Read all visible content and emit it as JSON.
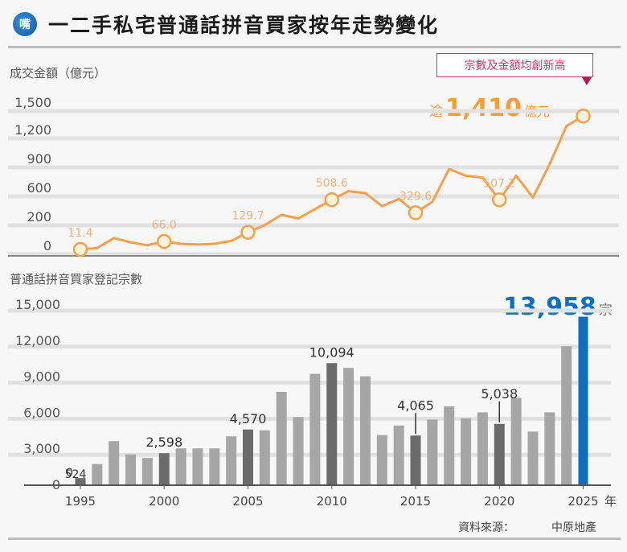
{
  "header": {
    "icon": "speech-bubble-icon",
    "icon_glyph": "嘴",
    "title": "一二手私宅普通話拼音買家按年走勢變化"
  },
  "line_chart": {
    "axis_title": "成交金額（億元）",
    "callout": "宗數及金額均創新高",
    "peak_prefix": "逾",
    "peak_value": "1,410",
    "peak_unit": "億元"
  },
  "bar_chart": {
    "axis_title": "普通話拼音買家登記宗數",
    "peak_value": "13,958",
    "peak_unit": "宗",
    "x_unit": "年"
  },
  "footer": {
    "source_label": "資料來源：",
    "source": "中原地產"
  },
  "colors": {
    "line": "#f5a04a",
    "line_marker_fill": "#fff3dc",
    "bar_normal": "#a6a6a6",
    "bar_highlight": "#6b6b6b",
    "bar_peak": "#0c6fc0",
    "callout": "#d6336c",
    "grid": "#e1e1e1"
  },
  "chart_data": [
    {
      "type": "line",
      "title": "成交金額（億元）",
      "ylabel": "成交金額（億元）",
      "ylim": [
        0,
        1500
      ],
      "yticks": [
        0,
        200,
        600,
        900,
        1200,
        1500
      ],
      "x": [
        1995,
        1996,
        1997,
        1998,
        1999,
        2000,
        2001,
        2002,
        2003,
        2004,
        2005,
        2006,
        2007,
        2008,
        2009,
        2010,
        2011,
        2012,
        2013,
        2014,
        2015,
        2016,
        2017,
        2018,
        2019,
        2020,
        2021,
        2022,
        2023,
        2024,
        2025
      ],
      "values": [
        11.4,
        20,
        90,
        60,
        40,
        66.0,
        50,
        45,
        50,
        70,
        129.7,
        180,
        300,
        250,
        380,
        508.6,
        620,
        600,
        420,
        520,
        329.6,
        480,
        850,
        780,
        760,
        507.2,
        780,
        540,
        900,
        1300,
        1410
      ],
      "labeled_points": [
        {
          "x": 1995,
          "label": "11.4"
        },
        {
          "x": 2000,
          "label": "66.0"
        },
        {
          "x": 2005,
          "label": "129.7"
        },
        {
          "x": 2010,
          "label": "508.6"
        },
        {
          "x": 2015,
          "label": "329.6"
        },
        {
          "x": 2020,
          "label": "507.2"
        },
        {
          "x": 2025,
          "label": "逾1,410億元"
        }
      ],
      "annotation": "宗數及金額均創新高"
    },
    {
      "type": "bar",
      "title": "普通話拼音買家登記宗數",
      "ylabel": "普通話拼音買家登記宗數",
      "xlabel": "年",
      "ylim": [
        0,
        15000
      ],
      "yticks": [
        0,
        3000,
        6000,
        9000,
        12000,
        15000
      ],
      "xticks": [
        1995,
        2000,
        2005,
        2010,
        2015,
        2020,
        2025
      ],
      "categories": [
        1995,
        1996,
        1997,
        1998,
        1999,
        2000,
        2001,
        2002,
        2003,
        2004,
        2005,
        2006,
        2007,
        2008,
        2009,
        2010,
        2011,
        2012,
        2013,
        2014,
        2015,
        2016,
        2017,
        2018,
        2019,
        2020,
        2021,
        2022,
        2023,
        2024,
        2025
      ],
      "values": [
        524,
        1700,
        3600,
        2500,
        2200,
        2598,
        3000,
        3000,
        3000,
        4000,
        4570,
        4500,
        7700,
        5600,
        9200,
        10094,
        9700,
        9000,
        4100,
        4900,
        4065,
        5400,
        6500,
        5500,
        6000,
        5038,
        7200,
        4400,
        6000,
        11500,
        13958
      ],
      "labeled_points": [
        {
          "x": 1995,
          "label": "524"
        },
        {
          "x": 2000,
          "label": "2,598"
        },
        {
          "x": 2005,
          "label": "4,570"
        },
        {
          "x": 2010,
          "label": "10,094"
        },
        {
          "x": 2015,
          "label": "4,065"
        },
        {
          "x": 2020,
          "label": "5,038"
        },
        {
          "x": 2025,
          "label": "13,958宗"
        }
      ]
    }
  ]
}
